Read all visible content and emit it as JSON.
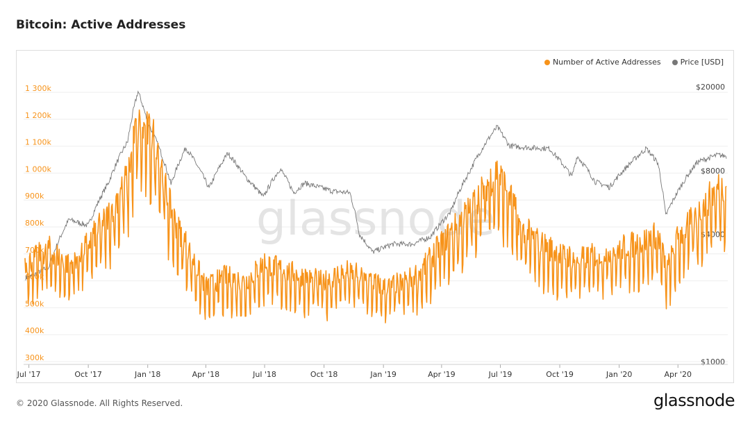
{
  "title": "Bitcoin: Active Addresses",
  "footer": {
    "copyright": "© 2020 Glassnode. All Rights Reserved.",
    "logo": "glassnode"
  },
  "watermark": "glassnode",
  "legend": [
    {
      "label": "Number of Active Addresses",
      "color": "#f7931a"
    },
    {
      "label": "Price [USD]",
      "color": "#777777"
    }
  ],
  "chart_data": {
    "type": "line",
    "title": "Bitcoin: Active Addresses",
    "x_ticks": [
      "Jul '17",
      "Oct '17",
      "Jan '18",
      "Apr '18",
      "Jul '18",
      "Oct '18",
      "Jan '19",
      "Apr '19",
      "Jul '19",
      "Oct '19",
      "Jan '20",
      "Apr '20"
    ],
    "x_start": "2017-06-25",
    "x_end": "2020-06-15",
    "y_left": {
      "label": "Number of Active Addresses",
      "ticks": [
        "1 300k",
        "1 200k",
        "1 100k",
        "1 000k",
        "900k",
        "800k",
        "700k",
        "600k",
        "500k",
        "400k",
        "300k"
      ],
      "range": [
        300000,
        1300000
      ]
    },
    "y_right": {
      "label": "Price [USD]",
      "scale": "log",
      "ticks": [
        "$20000",
        "$8000",
        "$4000",
        "$1000"
      ],
      "range": [
        1000,
        20000
      ]
    },
    "grid": true,
    "legend_position": "top-right",
    "series": [
      {
        "name": "Number of Active Addresses",
        "axis": "left",
        "color": "#f7931a",
        "x": [
          "2017-07-01",
          "2017-08-01",
          "2017-09-01",
          "2017-10-01",
          "2017-11-01",
          "2017-12-01",
          "2017-12-15",
          "2018-01-01",
          "2018-01-15",
          "2018-02-01",
          "2018-02-15",
          "2018-03-01",
          "2018-04-01",
          "2018-05-01",
          "2018-06-01",
          "2018-07-01",
          "2018-08-01",
          "2018-09-01",
          "2018-10-01",
          "2018-11-01",
          "2018-12-01",
          "2019-01-01",
          "2019-02-01",
          "2019-03-01",
          "2019-04-01",
          "2019-05-01",
          "2019-06-01",
          "2019-06-25",
          "2019-07-15",
          "2019-08-01",
          "2019-09-01",
          "2019-10-01",
          "2019-11-01",
          "2019-12-01",
          "2020-01-01",
          "2020-02-01",
          "2020-03-01",
          "2020-03-15",
          "2020-04-01",
          "2020-05-01",
          "2020-06-01"
        ],
        "values": [
          650000,
          700000,
          640000,
          720000,
          820000,
          960000,
          1150000,
          1120000,
          1090000,
          880000,
          780000,
          720000,
          560000,
          600000,
          580000,
          650000,
          620000,
          600000,
          580000,
          620000,
          600000,
          560000,
          580000,
          620000,
          720000,
          800000,
          900000,
          980000,
          900000,
          780000,
          720000,
          680000,
          660000,
          680000,
          700000,
          720000,
          750000,
          620000,
          740000,
          820000,
          920000
        ]
      },
      {
        "name": "Price [USD]",
        "axis": "right",
        "color": "#777777",
        "x": [
          "2017-07-01",
          "2017-08-01",
          "2017-09-01",
          "2017-10-01",
          "2017-11-01",
          "2017-12-01",
          "2017-12-17",
          "2018-01-01",
          "2018-02-06",
          "2018-03-01",
          "2018-04-06",
          "2018-05-05",
          "2018-06-01",
          "2018-06-29",
          "2018-07-25",
          "2018-08-15",
          "2018-09-01",
          "2018-10-15",
          "2018-11-10",
          "2018-11-25",
          "2018-12-15",
          "2019-01-15",
          "2019-02-15",
          "2019-03-15",
          "2019-04-15",
          "2019-05-15",
          "2019-06-26",
          "2019-07-15",
          "2019-08-15",
          "2019-09-15",
          "2019-10-20",
          "2019-10-28",
          "2019-11-25",
          "2019-12-17",
          "2020-01-15",
          "2020-02-12",
          "2020-03-01",
          "2020-03-13",
          "2020-04-01",
          "2020-05-01",
          "2020-06-01",
          "2020-06-15"
        ],
        "values": [
          2500,
          2800,
          4700,
          4400,
          7000,
          11000,
          19000,
          13500,
          6900,
          10300,
          6600,
          9700,
          7500,
          6000,
          8200,
          6300,
          7000,
          6400,
          6300,
          4000,
          3300,
          3600,
          3600,
          3900,
          5100,
          8000,
          12900,
          10500,
          10300,
          10200,
          7500,
          9400,
          7100,
          6700,
          8500,
          10200,
          8700,
          4900,
          6400,
          8800,
          9500,
          9400
        ]
      }
    ]
  }
}
